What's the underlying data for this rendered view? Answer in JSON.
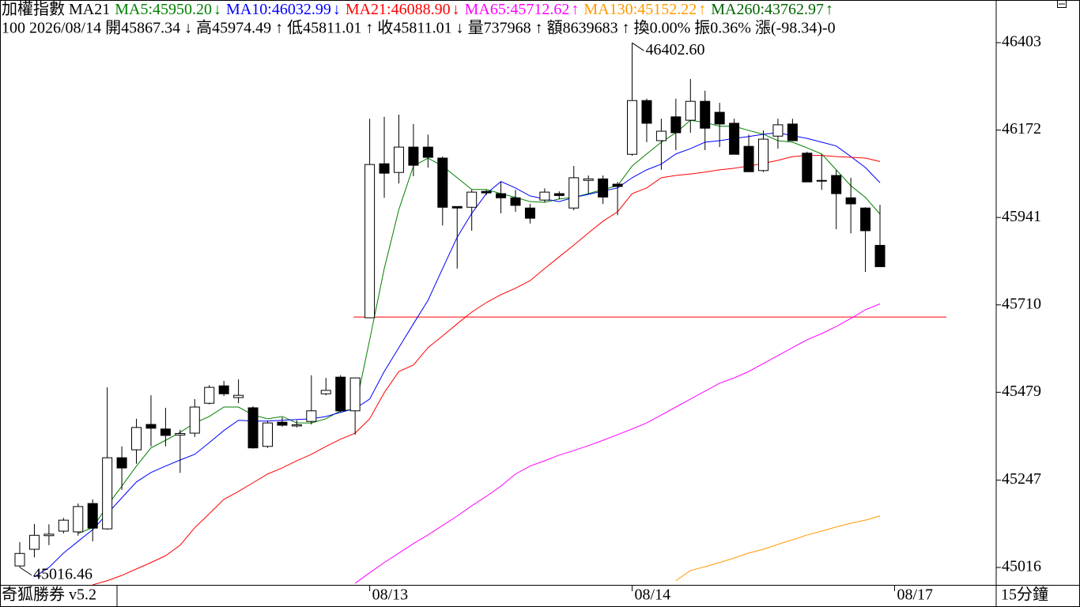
{
  "chart_data": {
    "type": "candlestick",
    "legend_title": "加權指數 MA21",
    "info_line": "100 2026/08/14 開45867.34 ↓ 高45974.49 ↑ 低45811.01 ↑ 收45811.01 ↓ 量737968 ↑ 額8639683 ↑ 換0.00% 振0.36% 漲(-98.34)-0",
    "ylim": [
      44970,
      46515.8
    ],
    "yticks": [
      46403,
      46172,
      45941,
      45710,
      45479,
      45247,
      45016
    ],
    "xlim": [
      -1.356,
      66.97
    ],
    "xticks": [
      {
        "value": 24,
        "label": "08/13"
      },
      {
        "value": 42,
        "label": "08/14"
      },
      {
        "value": 60,
        "label": "08/17"
      }
    ],
    "up_color": "#ffffff",
    "down_color": "#000000",
    "open": [
      45020,
      45064,
      45100,
      45112,
      45110,
      45185,
      45118,
      45306,
      45327,
      45394,
      45382,
      45366,
      45371,
      45450,
      45496,
      45465,
      45438,
      45336,
      45400,
      45390,
      45402,
      45475,
      45519,
      45430,
      45676,
      46083,
      46060,
      46127,
      46127,
      46098,
      45970,
      45968,
      46010,
      46004,
      45993,
      45966,
      45987,
      46004,
      45966,
      46039,
      46043,
      46029,
      46108,
      46250,
      46144,
      46207,
      46198,
      46248,
      46219,
      46190,
      46129,
      46065,
      46156,
      46188,
      46111,
      46039,
      46052,
      45993,
      45966,
      45867.34
    ],
    "high": [
      45083,
      45131,
      45130,
      45147,
      45185,
      45196,
      45492,
      45336,
      45409,
      45471,
      45438,
      45380,
      45461,
      45498,
      45509,
      45513,
      45442,
      45404,
      45413,
      45405,
      45524,
      45517,
      45524,
      45518,
      46202,
      46207,
      46213,
      46188,
      46160,
      46102,
      45970,
      46014,
      46014,
      46035,
      46014,
      45977,
      46018,
      46010,
      46077,
      46052,
      46052,
      46035,
      46402.6,
      46255,
      46202,
      46255,
      46307,
      46276,
      46244,
      46202,
      46160,
      46171,
      46202,
      46202,
      46115,
      46108,
      46067,
      46046,
      45968,
      45974.49
    ],
    "low": [
      45016.46,
      45043,
      45075,
      45106,
      45100,
      45085,
      45116,
      45221,
      45290,
      45336,
      45336,
      45266,
      45361,
      45447,
      45469,
      45450,
      45330,
      45332,
      45388,
      45386,
      45394,
      45471,
      45425,
      45367,
      45676,
      45993,
      46031,
      46050,
      46073,
      45920,
      45806,
      45906,
      46000,
      45952,
      45956,
      45925,
      45981,
      45989,
      45960,
      46004,
      45977,
      45947,
      46104,
      46140,
      46067,
      46119,
      46165,
      46119,
      46127,
      46108,
      46061,
      46061,
      46123,
      46144,
      46035,
      46014,
      45910,
      45899,
      45797,
      45811.01
    ],
    "close": [
      45053,
      45101,
      45104,
      45141,
      45177,
      45120,
      45306,
      45279,
      45386,
      45384,
      45365,
      45370,
      45440,
      45492,
      45475,
      45471,
      45332,
      45398,
      45392,
      45393,
      45430,
      45484,
      45430,
      45517,
      46081,
      46058,
      46127,
      46079,
      46100,
      45968,
      45966,
      46008,
      46006,
      45993,
      45973,
      45939,
      46008,
      45999,
      46046,
      46043,
      45995,
      46023,
      46250,
      46190,
      46169,
      46165,
      46248,
      46177,
      46188,
      46108,
      46062,
      46148,
      46186,
      46144,
      46035,
      46037,
      46004,
      45977,
      45906,
      45811.01
    ],
    "series": [
      {
        "label": "MA5:45950.20",
        "arrow": "↓",
        "color": "#008000",
        "values": [
          null,
          null,
          null,
          null,
          45106,
          45121,
          45179,
          45231,
          45284,
          45332,
          45352,
          45373,
          45398,
          45415,
          45440,
          45440,
          45419,
          45409,
          45415,
          45398,
          45398,
          45409,
          45430,
          45434,
          45618,
          45806,
          45962,
          46077,
          46098,
          46077,
          46046,
          46015,
          46015,
          46004,
          45994,
          45983,
          45981,
          45990,
          45994,
          46004,
          46015,
          46025,
          46077,
          46109,
          46140,
          46165,
          46198,
          46192,
          46182,
          46182,
          46171,
          46161,
          46144,
          46140,
          46125,
          46109,
          46067,
          46025,
          45994,
          45950.2
        ]
      },
      {
        "label": "MA10:46032.99",
        "arrow": "↓",
        "color": "#0000ff",
        "values": [
          null,
          44991,
          45016,
          45054,
          45085,
          45116,
          45158,
          45200,
          45242,
          45267,
          45284,
          45300,
          45315,
          45346,
          45378,
          45405,
          45403,
          45403,
          45405,
          45407,
          45409,
          45415,
          45426,
          45436,
          45461,
          45534,
          45597,
          45660,
          45722,
          45806,
          45889,
          45952,
          46004,
          46036,
          46019,
          45998,
          45990,
          45983,
          45994,
          46002,
          46011,
          46019,
          46046,
          46067,
          46082,
          46109,
          46123,
          46140,
          46144,
          46150,
          46155,
          46161,
          46165,
          46157,
          46150,
          46140,
          46130,
          46102,
          46073,
          46032.99
        ]
      },
      {
        "label": "MA21:46088.90",
        "arrow": "↓",
        "color": "#ff0000",
        "values": [
          null,
          null,
          null,
          null,
          null,
          44970,
          44981,
          44995,
          45012,
          45029,
          45047,
          45075,
          45121,
          45158,
          45196,
          45217,
          45240,
          45263,
          45279,
          45298,
          45315,
          45336,
          45355,
          45371,
          45409,
          45478,
          45534,
          45551,
          45597,
          45628,
          45660,
          45691,
          45716,
          45737,
          45754,
          45774,
          45806,
          45837,
          45868,
          45900,
          45931,
          45956,
          46004,
          46019,
          46046,
          46052,
          46056,
          46061,
          46067,
          46071,
          46077,
          46084,
          46092,
          46102,
          46105,
          46105,
          46102,
          46100,
          46098,
          46088.9
        ]
      },
      {
        "label": "MA65:45712.62",
        "arrow": "↑",
        "color": "#ff00ff",
        "values": [
          null,
          null,
          null,
          null,
          null,
          null,
          null,
          null,
          null,
          null,
          null,
          null,
          null,
          null,
          null,
          null,
          null,
          null,
          null,
          null,
          null,
          null,
          null,
          44974,
          45002,
          45029,
          45054,
          45079,
          45102,
          45127,
          45152,
          45179,
          45204,
          45231,
          45263,
          45284,
          45298,
          45313,
          45325,
          45338,
          45352,
          45367,
          45382,
          45398,
          45419,
          45440,
          45461,
          45482,
          45503,
          45517,
          45534,
          45555,
          45576,
          45597,
          45618,
          45634,
          45653,
          45674,
          45697,
          45712.62
        ]
      },
      {
        "label": "MA130:45152.22",
        "arrow": "↑",
        "color": "#ff9900",
        "values": [
          null,
          null,
          null,
          null,
          null,
          null,
          null,
          null,
          null,
          null,
          null,
          null,
          null,
          null,
          null,
          null,
          null,
          null,
          null,
          null,
          null,
          null,
          null,
          null,
          null,
          null,
          null,
          null,
          null,
          null,
          null,
          null,
          null,
          null,
          null,
          null,
          null,
          null,
          null,
          null,
          null,
          null,
          null,
          null,
          null,
          44981,
          45008,
          45018,
          45029,
          45041,
          45054,
          45064,
          45077,
          45089,
          45102,
          45112,
          45123,
          45133,
          45141,
          45152.22
        ]
      },
      {
        "label": "MA260:43762.97",
        "arrow": "↑",
        "color": "#006400"
      }
    ],
    "hline": {
      "value": 45678,
      "color": "#ff0000"
    },
    "annotations": [
      {
        "label": "46402.60",
        "value": 46402.6,
        "x": 42
      },
      {
        "label": "45016.46",
        "value": 45016.46,
        "x": 0
      }
    ]
  },
  "footer": {
    "left": "奇狐勝券 v5.2",
    "right": "15分鐘"
  }
}
